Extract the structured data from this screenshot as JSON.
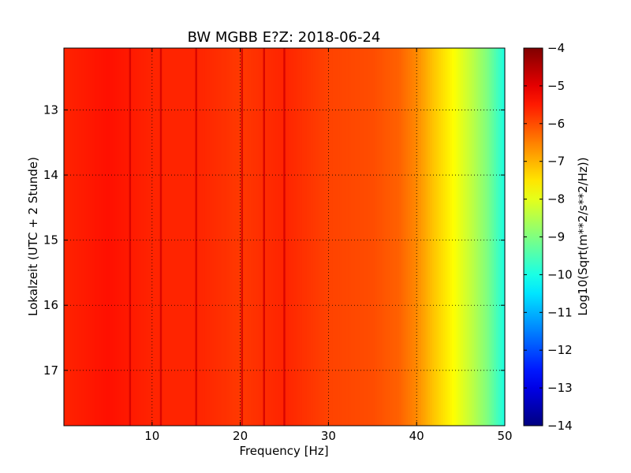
{
  "chart_data": {
    "type": "heatmap",
    "title": "BW MGBB E?Z: 2018-06-24",
    "xlabel": "Frequency [Hz]",
    "ylabel": "Lokalzeit (UTC + 2 Stunde)",
    "xlim": [
      0,
      50
    ],
    "ylim": [
      12.05,
      17.85
    ],
    "y_inverted": true,
    "x_ticks": [
      10,
      20,
      30,
      40,
      50
    ],
    "y_ticks": [
      13,
      14,
      15,
      16,
      17
    ],
    "grid": true,
    "colorbar": {
      "label": "Log10(Sqrt(m**2/s**2/Hz))",
      "range": [
        -14,
        -4
      ],
      "ticks": [
        -4,
        -5,
        -6,
        -7,
        -8,
        -9,
        -10,
        -11,
        -12,
        -13,
        -14
      ],
      "colormap": "jet"
    },
    "spectral_profile": {
      "frequency_hz": [
        0,
        5,
        10,
        15,
        20,
        25,
        30,
        35,
        38,
        40,
        42,
        44,
        46,
        48,
        50
      ],
      "log10_amplitude": [
        -5.6,
        -5.4,
        -5.6,
        -5.6,
        -5.8,
        -5.6,
        -5.9,
        -6.0,
        -6.2,
        -6.6,
        -7.2,
        -7.7,
        -8.3,
        -9.0,
        -10.0
      ]
    },
    "strong_lines_hz": [
      7.5,
      11.0,
      15.0,
      20.2,
      22.7,
      25.0
    ]
  }
}
